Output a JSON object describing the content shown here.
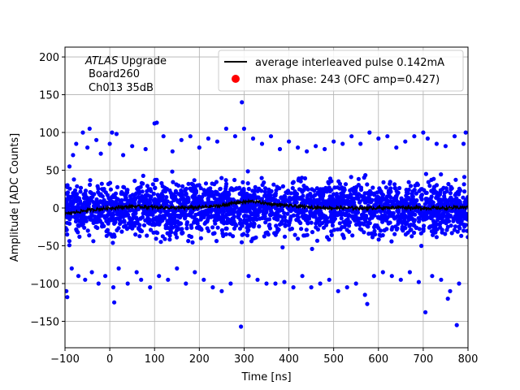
{
  "chart_data": {
    "type": "scatter",
    "xlabel": "Time [ns]",
    "ylabel": "Amplitude [ADC Counts]",
    "xlim": [
      -100,
      800
    ],
    "ylim": [
      -185,
      213
    ],
    "xticks": [
      -100,
      0,
      100,
      200,
      300,
      400,
      500,
      600,
      700,
      800
    ],
    "yticks": [
      -150,
      -100,
      -50,
      0,
      50,
      100,
      150,
      200
    ],
    "grid": true,
    "legend_position": "upper-right",
    "annotation": {
      "line1_italic": "ATLAS",
      "line1_rest": " Upgrade",
      "line2": "Board260",
      "line3": "Ch013 35dB"
    },
    "series": [
      {
        "name": "max phase: 243 (OFC amp=0.427)",
        "type": "scatter",
        "color": "#0000ff",
        "legend_marker_color": "#ff0000",
        "description_x_range": [
          -100,
          800
        ],
        "dense_band": [
          -40,
          40
        ],
        "outliers": [
          [
            -97,
            -110
          ],
          [
            -95,
            -118
          ],
          [
            -90,
            55
          ],
          [
            -85,
            -80
          ],
          [
            -82,
            70
          ],
          [
            -75,
            85
          ],
          [
            -70,
            -90
          ],
          [
            -60,
            100
          ],
          [
            -55,
            -95
          ],
          [
            -50,
            80
          ],
          [
            -45,
            105
          ],
          [
            -40,
            -85
          ],
          [
            -30,
            90
          ],
          [
            -25,
            -100
          ],
          [
            -20,
            72
          ],
          [
            -10,
            -90
          ],
          [
            0,
            85
          ],
          [
            5,
            100
          ],
          [
            8,
            -105
          ],
          [
            10,
            -125
          ],
          [
            15,
            98
          ],
          [
            20,
            -80
          ],
          [
            30,
            70
          ],
          [
            40,
            -100
          ],
          [
            50,
            82
          ],
          [
            60,
            -85
          ],
          [
            70,
            -95
          ],
          [
            80,
            78
          ],
          [
            90,
            -105
          ],
          [
            100,
            112
          ],
          [
            105,
            113
          ],
          [
            110,
            -90
          ],
          [
            120,
            95
          ],
          [
            130,
            -95
          ],
          [
            140,
            75
          ],
          [
            150,
            -80
          ],
          [
            160,
            90
          ],
          [
            170,
            -100
          ],
          [
            180,
            95
          ],
          [
            190,
            -85
          ],
          [
            200,
            80
          ],
          [
            210,
            -95
          ],
          [
            220,
            92
          ],
          [
            230,
            -105
          ],
          [
            240,
            88
          ],
          [
            250,
            -110
          ],
          [
            260,
            105
          ],
          [
            270,
            -100
          ],
          [
            280,
            95
          ],
          [
            295,
            140
          ],
          [
            293,
            -157
          ],
          [
            300,
            105
          ],
          [
            310,
            -90
          ],
          [
            320,
            92
          ],
          [
            330,
            -95
          ],
          [
            340,
            85
          ],
          [
            350,
            -100
          ],
          [
            360,
            95
          ],
          [
            370,
            -100
          ],
          [
            380,
            78
          ],
          [
            390,
            -98
          ],
          [
            400,
            88
          ],
          [
            410,
            -105
          ],
          [
            420,
            80
          ],
          [
            430,
            -90
          ],
          [
            440,
            75
          ],
          [
            450,
            -105
          ],
          [
            460,
            82
          ],
          [
            470,
            -100
          ],
          [
            480,
            78
          ],
          [
            490,
            -95
          ],
          [
            500,
            88
          ],
          [
            510,
            -110
          ],
          [
            520,
            85
          ],
          [
            530,
            -105
          ],
          [
            540,
            95
          ],
          [
            550,
            -100
          ],
          [
            560,
            85
          ],
          [
            570,
            -115
          ],
          [
            575,
            -127
          ],
          [
            580,
            100
          ],
          [
            590,
            -90
          ],
          [
            600,
            92
          ],
          [
            610,
            -85
          ],
          [
            620,
            95
          ],
          [
            630,
            -90
          ],
          [
            640,
            80
          ],
          [
            650,
            -95
          ],
          [
            660,
            88
          ],
          [
            670,
            -85
          ],
          [
            680,
            95
          ],
          [
            690,
            -98
          ],
          [
            700,
            100
          ],
          [
            705,
            -138
          ],
          [
            710,
            92
          ],
          [
            720,
            -90
          ],
          [
            730,
            85
          ],
          [
            740,
            -95
          ],
          [
            750,
            82
          ],
          [
            755,
            -120
          ],
          [
            760,
            -110
          ],
          [
            770,
            95
          ],
          [
            775,
            -155
          ],
          [
            780,
            -100
          ],
          [
            790,
            85
          ],
          [
            795,
            100
          ]
        ]
      },
      {
        "name": "average interleaved pulse 0.142mA",
        "type": "line",
        "color": "#000000",
        "x": [
          -100,
          -50,
          0,
          50,
          100,
          150,
          200,
          250,
          280,
          300,
          320,
          350,
          400,
          450,
          500,
          550,
          600,
          650,
          700,
          750,
          800
        ],
        "y": [
          -8,
          -3,
          0,
          2,
          1,
          0,
          1,
          3,
          7,
          8,
          9,
          6,
          3,
          1,
          0,
          0,
          0,
          1,
          0,
          0,
          1
        ]
      }
    ]
  }
}
